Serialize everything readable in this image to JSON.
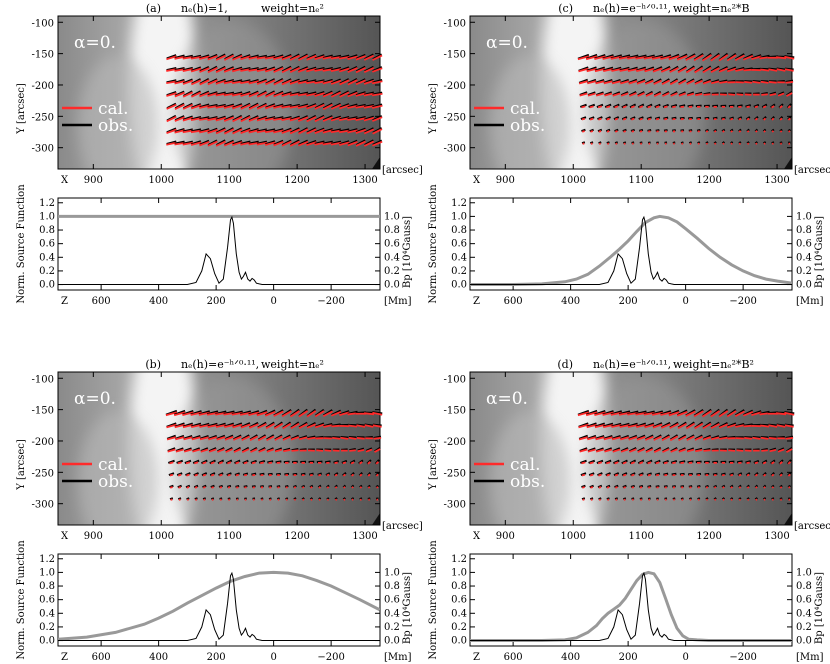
{
  "figure": {
    "common": {
      "image_x_ticks": [
        "900",
        "1000",
        "1100",
        "1200",
        "1300"
      ],
      "image_x_ticks_values": [
        900,
        1000,
        1100,
        1200,
        1300
      ],
      "image_y_ticks": [
        "-100",
        "-150",
        "-200",
        "-250",
        "-300"
      ],
      "image_y_ticks_values": [
        -100,
        -150,
        -200,
        -250,
        -300
      ],
      "image_x_letter": "X",
      "image_x_unit": "[arcsec]",
      "image_y_label": "Y [arcsec]",
      "alpha_label": "α=0.",
      "legend_cal": "cal.",
      "legend_obs": "obs.",
      "cal_color": "#ff2a2a",
      "obs_color": "#000000",
      "plot_left_ticks": [
        "0.0",
        "0.2",
        "0.4",
        "0.6",
        "0.8",
        "1.0",
        "1.2"
      ],
      "plot_right_ticks": [
        "0.0",
        "0.2",
        "0.4",
        "0.6",
        "0.8",
        "1.0"
      ],
      "plot_left_label": "Norm. Source Function",
      "plot_right_label": "Bp [10⁴Gauss]",
      "plot_x_ticks": [
        "600",
        "400",
        "200",
        "0",
        "−200"
      ],
      "plot_x_letter": "Z",
      "plot_x_unit": "[Mm]",
      "source_color": "#999999"
    },
    "panels": [
      {
        "id": "a",
        "letter": "(a)",
        "ne": "nₑ(h)=1,",
        "weight": "weight=nₑ²"
      },
      {
        "id": "c",
        "letter": "(c)",
        "ne": "nₑ(h)=e⁻ʰᐟ⁰·¹¹,",
        "weight": "weight=nₑ²*B"
      },
      {
        "id": "b",
        "letter": "(b)",
        "ne": "nₑ(h)=e⁻ʰᐟ⁰·¹¹,",
        "weight": "weight=nₑ²"
      },
      {
        "id": "d",
        "letter": "(d)",
        "ne": "nₑ(h)=e⁻ʰᐟ⁰·¹¹,",
        "weight": "weight=nₑ²*B²"
      }
    ]
  },
  "chart_data": [
    {
      "type": "line",
      "panel": "(a)",
      "xlabel": "Z [Mm]",
      "ylabel": "Norm. Source Function",
      "y2label": "Bp [10⁴Gauss]",
      "xlim": [
        750,
        -370
      ],
      "ylim": [
        -0.08,
        1.27
      ],
      "series": [
        {
          "kind": "source",
          "x": [
            750,
            500,
            250,
            0,
            -250,
            -370
          ],
          "values": [
            1.0,
            1.0,
            1.0,
            1.0,
            1.0,
            1.0
          ]
        },
        {
          "kind": "field",
          "x": [
            750,
            300,
            270,
            250,
            235,
            220,
            205,
            190,
            175,
            160,
            150,
            145,
            140,
            130,
            120,
            112,
            105,
            98,
            90,
            82,
            75,
            68,
            60,
            50,
            40,
            0,
            -370
          ],
          "values": [
            0,
            0,
            0.03,
            0.2,
            0.45,
            0.38,
            0.16,
            0.02,
            0.08,
            0.55,
            0.95,
            0.99,
            0.9,
            0.45,
            0.18,
            0.08,
            0.12,
            0.18,
            0.08,
            0.05,
            0.09,
            0.07,
            0.02,
            0.01,
            0,
            0,
            0
          ]
        }
      ]
    },
    {
      "type": "line",
      "panel": "(c)",
      "xlabel": "Z [Mm]",
      "ylabel": "Norm. Source Function",
      "y2label": "Bp [10⁴Gauss]",
      "xlim": [
        750,
        -370
      ],
      "ylim": [
        -0.08,
        1.27
      ],
      "series": [
        {
          "kind": "source",
          "x": [
            750,
            600,
            500,
            420,
            380,
            340,
            300,
            260,
            230,
            200,
            170,
            140,
            110,
            90,
            60,
            30,
            0,
            -40,
            -80,
            -120,
            -160,
            -200,
            -240,
            -280,
            -320,
            -370
          ],
          "values": [
            0,
            0,
            0.01,
            0.04,
            0.08,
            0.15,
            0.27,
            0.41,
            0.52,
            0.64,
            0.78,
            0.91,
            0.98,
            1.0,
            0.98,
            0.92,
            0.82,
            0.68,
            0.53,
            0.4,
            0.29,
            0.2,
            0.13,
            0.08,
            0.05,
            0.02
          ]
        },
        {
          "kind": "field",
          "x": [
            750,
            300,
            270,
            250,
            235,
            220,
            205,
            190,
            175,
            160,
            150,
            145,
            140,
            130,
            120,
            112,
            105,
            98,
            90,
            82,
            75,
            68,
            60,
            50,
            40,
            0,
            -370
          ],
          "values": [
            0,
            0,
            0.03,
            0.2,
            0.45,
            0.38,
            0.16,
            0.02,
            0.08,
            0.55,
            0.95,
            0.99,
            0.9,
            0.45,
            0.18,
            0.08,
            0.12,
            0.18,
            0.08,
            0.05,
            0.09,
            0.07,
            0.02,
            0.01,
            0,
            0,
            0
          ]
        }
      ]
    },
    {
      "type": "line",
      "panel": "(b)",
      "xlabel": "Z [Mm]",
      "ylabel": "Norm. Source Function",
      "y2label": "Bp [10⁴Gauss]",
      "xlim": [
        750,
        -370
      ],
      "ylim": [
        -0.08,
        1.27
      ],
      "series": [
        {
          "kind": "source",
          "x": [
            750,
            650,
            550,
            450,
            400,
            350,
            300,
            250,
            200,
            150,
            100,
            50,
            0,
            -50,
            -100,
            -150,
            -200,
            -250,
            -300,
            -370
          ],
          "values": [
            0.02,
            0.05,
            0.12,
            0.24,
            0.33,
            0.43,
            0.55,
            0.66,
            0.77,
            0.87,
            0.94,
            0.99,
            1.0,
            0.99,
            0.95,
            0.88,
            0.8,
            0.7,
            0.6,
            0.45
          ]
        },
        {
          "kind": "field",
          "x": [
            750,
            300,
            270,
            250,
            235,
            220,
            205,
            190,
            175,
            160,
            150,
            145,
            140,
            130,
            120,
            112,
            105,
            98,
            90,
            82,
            75,
            68,
            60,
            50,
            40,
            0,
            -370
          ],
          "values": [
            0,
            0,
            0.03,
            0.2,
            0.45,
            0.38,
            0.16,
            0.02,
            0.08,
            0.55,
            0.95,
            0.99,
            0.9,
            0.45,
            0.18,
            0.08,
            0.12,
            0.18,
            0.08,
            0.05,
            0.09,
            0.07,
            0.02,
            0.01,
            0,
            0,
            0
          ]
        }
      ]
    },
    {
      "type": "line",
      "panel": "(d)",
      "xlabel": "Z [Mm]",
      "ylabel": "Norm. Source Function",
      "y2label": "Bp [10⁴Gauss]",
      "xlim": [
        750,
        -370
      ],
      "ylim": [
        -0.08,
        1.27
      ],
      "series": [
        {
          "kind": "source",
          "x": [
            750,
            500,
            420,
            380,
            340,
            310,
            290,
            270,
            250,
            230,
            210,
            190,
            170,
            150,
            130,
            110,
            90,
            70,
            50,
            30,
            10,
            -10,
            -40,
            -80,
            -150,
            -370
          ],
          "values": [
            0,
            0,
            0.01,
            0.04,
            0.12,
            0.22,
            0.32,
            0.4,
            0.46,
            0.52,
            0.62,
            0.75,
            0.88,
            0.97,
            1.0,
            0.98,
            0.85,
            0.62,
            0.38,
            0.18,
            0.07,
            0.02,
            0.01,
            0,
            0,
            0
          ]
        },
        {
          "kind": "field",
          "x": [
            750,
            300,
            270,
            250,
            235,
            220,
            205,
            190,
            175,
            160,
            150,
            145,
            140,
            130,
            120,
            112,
            105,
            98,
            90,
            82,
            75,
            68,
            60,
            50,
            40,
            0,
            -370
          ],
          "values": [
            0,
            0,
            0.03,
            0.2,
            0.45,
            0.38,
            0.16,
            0.02,
            0.08,
            0.55,
            0.95,
            0.99,
            0.9,
            0.45,
            0.18,
            0.08,
            0.12,
            0.18,
            0.08,
            0.05,
            0.09,
            0.07,
            0.02,
            0.01,
            0,
            0,
            0
          ]
        }
      ]
    }
  ]
}
